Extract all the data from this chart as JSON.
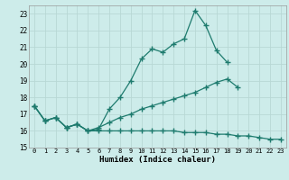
{
  "xlabel": "Humidex (Indice chaleur)",
  "bg_color": "#cdecea",
  "grid_color": "#b8d8d5",
  "line_color": "#1e7b6e",
  "xlim": [
    -0.5,
    23.5
  ],
  "ylim": [
    15,
    23.5
  ],
  "xticks": [
    0,
    1,
    2,
    3,
    4,
    5,
    6,
    7,
    8,
    9,
    10,
    11,
    12,
    13,
    14,
    15,
    16,
    17,
    18,
    19,
    20,
    21,
    22,
    23
  ],
  "yticks": [
    15,
    16,
    17,
    18,
    19,
    20,
    21,
    22,
    23
  ],
  "series1_y": [
    17.5,
    16.6,
    16.8,
    16.2,
    16.4,
    16.0,
    16.1,
    17.3,
    18.0,
    19.0,
    20.3,
    20.9,
    20.7,
    21.2,
    21.5,
    23.2,
    22.3,
    20.8,
    20.1,
    null,
    null,
    null,
    null,
    null
  ],
  "series2_y": [
    17.5,
    16.6,
    16.8,
    16.2,
    16.4,
    16.0,
    16.2,
    16.5,
    16.8,
    17.0,
    17.3,
    17.5,
    17.7,
    17.9,
    18.1,
    18.3,
    18.6,
    18.9,
    19.1,
    18.6,
    null,
    null,
    null,
    null
  ],
  "series3_y": [
    17.5,
    16.6,
    16.8,
    16.2,
    16.4,
    16.0,
    16.0,
    16.0,
    16.0,
    16.0,
    16.0,
    16.0,
    16.0,
    16.0,
    15.9,
    15.9,
    15.9,
    15.8,
    15.8,
    15.7,
    15.7,
    15.6,
    15.5,
    15.5
  ]
}
